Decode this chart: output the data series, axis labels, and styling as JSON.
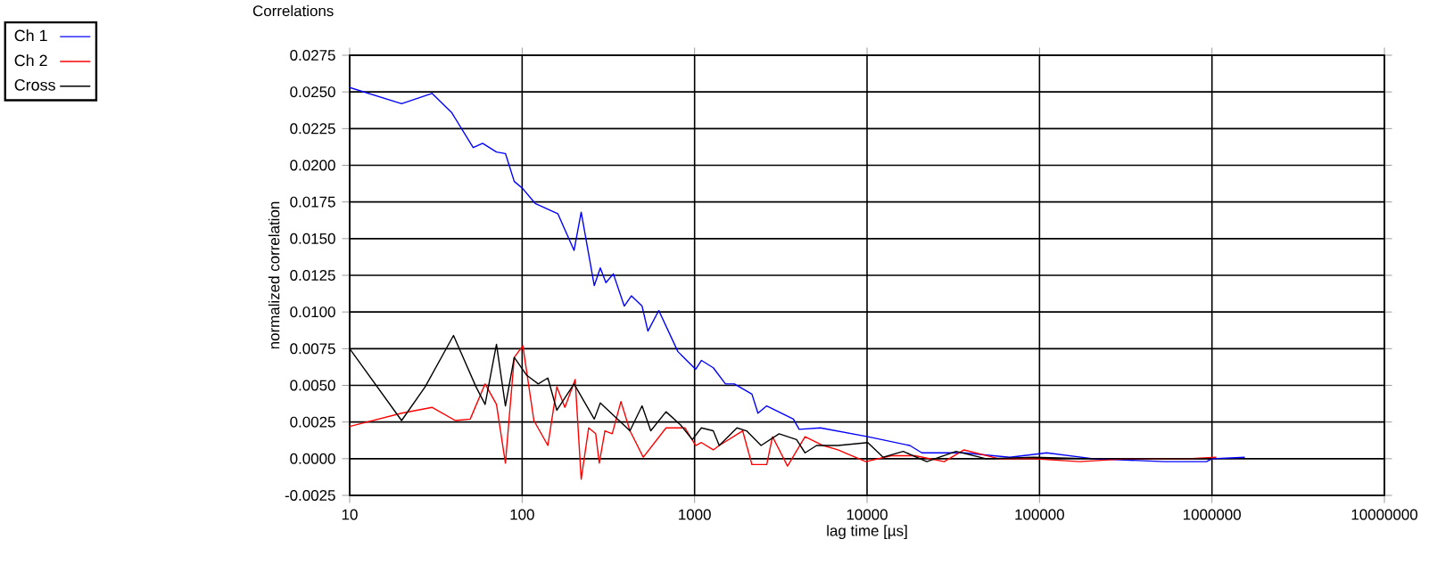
{
  "chart_data": {
    "type": "line",
    "title": "Correlations",
    "xlabel": "lag time [µs]",
    "ylabel": "normalized correlation",
    "log": "x",
    "grid": true,
    "legend": "left",
    "xlim": [
      10,
      10000000
    ],
    "xticks": [
      10,
      100,
      1000,
      10000,
      100000,
      1000000,
      10000000
    ],
    "ylim": [
      -0.0025,
      0.0275
    ],
    "yticks": [
      {
        "value": 0.0275,
        "label": "0.0275"
      },
      {
        "value": 0.025,
        "label": "0.0250"
      },
      {
        "value": 0.0225,
        "label": "0.0225"
      },
      {
        "value": 0.02,
        "label": "0.0200"
      },
      {
        "value": 0.0175,
        "label": "0.0175"
      },
      {
        "value": 0.015,
        "label": "0.0150"
      },
      {
        "value": 0.0125,
        "label": "0.0125"
      },
      {
        "value": 0.01,
        "label": "0.0100"
      },
      {
        "value": 0.0075,
        "label": "0.0075"
      },
      {
        "value": 0.005,
        "label": "0.0050"
      },
      {
        "value": 0.0025,
        "label": "0.0025"
      },
      {
        "value": 0,
        "label": "0.0000"
      },
      {
        "value": -0.0025,
        "label": "-0.0025"
      }
    ],
    "series": [
      {
        "name": "Ch 1",
        "color": "#0000ff",
        "x": [
          10,
          20,
          30,
          39,
          52,
          59,
          71,
          80,
          90,
          101,
          119,
          161,
          200,
          220,
          262,
          284,
          306,
          338,
          391,
          430,
          496,
          536,
          620,
          800,
          1015,
          1095,
          1283,
          1510,
          1700,
          2150,
          2330,
          2620,
          3740,
          4040,
          5370,
          10100,
          17700,
          20800,
          36500,
          67200,
          110000,
          205000,
          532000,
          930000,
          1000000,
          1550000
        ],
        "values": [
          0.0253,
          0.0242,
          0.0249,
          0.0236,
          0.0212,
          0.0215,
          0.0209,
          0.0208,
          0.0189,
          0.0184,
          0.0174,
          0.0167,
          0.0142,
          0.0168,
          0.0118,
          0.013,
          0.012,
          0.0126,
          0.0104,
          0.0111,
          0.0104,
          0.0087,
          0.0101,
          0.0073,
          0.0061,
          0.0067,
          0.0062,
          0.0051,
          0.0051,
          0.0044,
          0.0031,
          0.0036,
          0.0027,
          0.002,
          0.0021,
          0.0015,
          0.0009,
          0.0004,
          0.0004,
          0.0001,
          0.0004,
          0,
          -0.0002,
          -0.0002,
          0,
          0.0001
        ]
      },
      {
        "name": "Ch 2",
        "color": "#ff0000",
        "x": [
          10,
          20,
          30,
          41,
          50,
          61,
          71,
          80,
          90,
          101,
          117,
          141,
          159,
          177,
          203,
          220,
          243,
          267,
          280,
          302,
          333,
          374,
          422,
          504,
          683,
          880,
          1015,
          1095,
          1283,
          1390,
          1900,
          2150,
          2620,
          2830,
          3460,
          4370,
          5560,
          6780,
          9840,
          13800,
          19000,
          28000,
          36500,
          58000,
          92000,
          171000,
          325000,
          725000,
          1060000
        ],
        "values": [
          0.0022,
          0.0031,
          0.0035,
          0.0026,
          0.0027,
          0.0051,
          0.0037,
          -0.0003,
          0.0069,
          0.0077,
          0.0026,
          0.0009,
          0.0049,
          0.0035,
          0.0054,
          -0.0014,
          0.0021,
          0.0017,
          -0.0003,
          0.0019,
          0.0017,
          0.0039,
          0.0019,
          0.0001,
          0.0021,
          0.0021,
          0.0009,
          0.0011,
          0.0006,
          0.0009,
          0.0019,
          -0.0004,
          -0.0004,
          0.0015,
          -0.0005,
          0.0015,
          0.0009,
          0.0006,
          -0.0002,
          0.0002,
          0.0002,
          -0.0002,
          0.0006,
          0,
          0,
          -0.0002,
          0,
          0,
          0.0001
        ]
      },
      {
        "name": "Cross",
        "color": "#000000",
        "x": [
          10,
          20,
          27.4,
          40,
          54,
          61,
          71,
          80,
          90,
          106,
          124,
          141,
          159,
          200,
          262,
          284,
          422,
          496,
          557,
          683,
          830,
          970,
          1095,
          1283,
          1390,
          1760,
          2000,
          2430,
          3090,
          3900,
          4370,
          5100,
          6780,
          10100,
          12400,
          16200,
          22200,
          32800,
          49000,
          92000,
          205000,
          580000,
          1000000
        ],
        "values": [
          0.0075,
          0.0026,
          0.0049,
          0.0084,
          0.0049,
          0.0037,
          0.0078,
          0.0036,
          0.0069,
          0.0057,
          0.0051,
          0.0055,
          0.0033,
          0.0051,
          0.0027,
          0.0038,
          0.0019,
          0.0036,
          0.0019,
          0.0032,
          0.0023,
          0.0013,
          0.0021,
          0.0019,
          0.0009,
          0.0021,
          0.0019,
          0.0009,
          0.0017,
          0.0013,
          0.0004,
          0.0009,
          0.0009,
          0.0011,
          0.0001,
          0.0005,
          -0.0002,
          0.0005,
          0,
          0.0001,
          0,
          0,
          0
        ]
      }
    ]
  }
}
